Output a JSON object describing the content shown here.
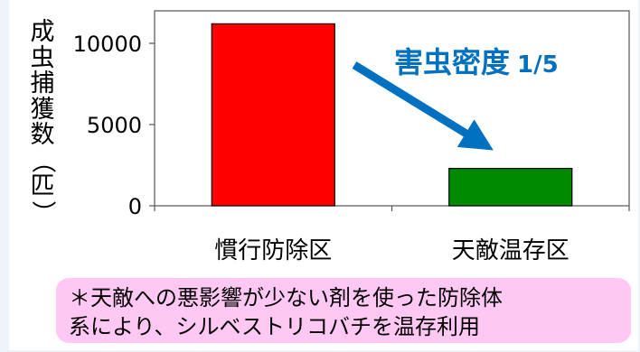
{
  "chart_data": {
    "type": "bar",
    "categories": [
      "慣行防除区",
      "天敵温存区"
    ],
    "values": [
      11200,
      2300
    ],
    "ylabel": "成虫捕獲数（匹）",
    "ylim": [
      0,
      12000
    ],
    "yticks": [
      "0",
      "5000",
      "10000"
    ],
    "bar_colors": [
      "#ff0000",
      "#008a00"
    ],
    "annotation": {
      "label": "害虫密度",
      "ratio": "1/5",
      "color": "#0070c0"
    }
  },
  "ylabel_chars": [
    "成",
    "虫",
    "捕",
    "獲",
    "数",
    "（",
    "匹",
    "）"
  ],
  "note": {
    "line1": "＊天敵への悪影響が少ない剤を使った防除体",
    "line2": "系により、シルベストリコバチを温存利用"
  }
}
